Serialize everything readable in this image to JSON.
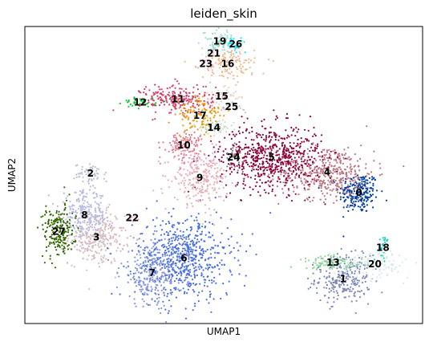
{
  "chart_data": {
    "type": "scatter",
    "title": "leiden_skin",
    "xlabel": "UMAP1",
    "ylabel": "UMAP2",
    "xlim": [
      0,
      100
    ],
    "ylim": [
      0,
      100
    ],
    "grid": false,
    "legend": "none (cluster labels printed on data)",
    "clusters": [
      {
        "label": "0",
        "color": "#023fa5",
        "center": [
          84.0,
          44.0
        ],
        "spread": [
          2.5,
          3.5
        ],
        "n": 220
      },
      {
        "label": "1",
        "color": "#7d87b9",
        "center": [
          80.0,
          15.0
        ],
        "spread": [
          3.5,
          4.0
        ],
        "n": 260
      },
      {
        "label": "2",
        "color": "#bec1d4",
        "center": [
          16.5,
          50.5
        ],
        "spread": [
          2.0,
          1.6
        ],
        "n": 60
      },
      {
        "label": "3",
        "color": "#d6bcc0",
        "center": [
          18.0,
          29.0
        ],
        "spread": [
          3.5,
          4.5
        ],
        "n": 300
      },
      {
        "label": "4",
        "color": "#bb7784",
        "center": [
          76.0,
          51.0
        ],
        "spread": [
          6.0,
          4.5
        ],
        "n": 420
      },
      {
        "label": "5",
        "color": "#8e063b",
        "center": [
          62.0,
          56.0
        ],
        "spread": [
          6.5,
          5.5
        ],
        "n": 650
      },
      {
        "label": "6",
        "color": "#4a6fe3",
        "center": [
          40.0,
          22.0
        ],
        "spread": [
          6.0,
          7.0
        ],
        "n": 650
      },
      {
        "label": "7",
        "color": "#8595e1",
        "center": [
          32.0,
          17.0
        ],
        "spread": [
          4.0,
          5.5
        ],
        "n": 260
      },
      {
        "label": "8",
        "color": "#b5bbe3",
        "center": [
          15.0,
          36.5
        ],
        "spread": [
          3.0,
          4.0
        ],
        "n": 240
      },
      {
        "label": "9",
        "color": "#e6afb9",
        "center": [
          44.0,
          49.0
        ],
        "spread": [
          3.5,
          4.5
        ],
        "n": 260
      },
      {
        "label": "10",
        "color": "#e07b91",
        "center": [
          40.0,
          60.0
        ],
        "spread": [
          2.5,
          2.5
        ],
        "n": 120
      },
      {
        "label": "11",
        "color": "#d33f6a",
        "center": [
          38.5,
          75.5
        ],
        "spread": [
          4.5,
          2.5
        ],
        "n": 230
      },
      {
        "label": "12",
        "color": "#11c638",
        "center": [
          29.0,
          74.5
        ],
        "spread": [
          2.0,
          0.8
        ],
        "n": 40
      },
      {
        "label": "13",
        "color": "#8dd593",
        "center": [
          77.5,
          20.5
        ],
        "spread": [
          4.0,
          1.2
        ],
        "n": 90
      },
      {
        "label": "14",
        "color": "#c6dec7",
        "center": [
          47.5,
          66.0
        ],
        "spread": [
          2.5,
          1.2
        ],
        "n": 60
      },
      {
        "label": "15",
        "color": "#ead3c6",
        "center": [
          49.5,
          76.5
        ],
        "spread": [
          2.5,
          1.5
        ],
        "n": 40
      },
      {
        "label": "16",
        "color": "#f0b98d",
        "center": [
          51.0,
          87.5
        ],
        "spread": [
          3.5,
          2.5
        ],
        "n": 140
      },
      {
        "label": "17",
        "color": "#ef9708",
        "center": [
          44.0,
          70.0
        ],
        "spread": [
          3.0,
          3.5
        ],
        "n": 110
      },
      {
        "label": "18",
        "color": "#0fcfc0",
        "center": [
          90.0,
          25.5
        ],
        "spread": [
          0.8,
          2.0
        ],
        "n": 25
      },
      {
        "label": "19",
        "color": "#9cded6",
        "center": [
          49.0,
          95.0
        ],
        "spread": [
          2.0,
          2.0
        ],
        "n": 80
      },
      {
        "label": "20",
        "color": "#d5eae7",
        "center": [
          88.0,
          20.0
        ],
        "spread": [
          4.5,
          2.2
        ],
        "n": 120
      },
      {
        "label": "21",
        "color": "#f3e1eb",
        "center": [
          47.5,
          91.0
        ],
        "spread": [
          1.2,
          1.0
        ],
        "n": 15
      },
      {
        "label": "22",
        "color": "#f6c4e1",
        "center": [
          27.0,
          35.5
        ],
        "spread": [
          0.8,
          0.6
        ],
        "n": 8
      },
      {
        "label": "23",
        "color": "#f79cd4",
        "center": [
          45.5,
          87.5
        ],
        "spread": [
          1.0,
          0.8
        ],
        "n": 12
      },
      {
        "label": "24",
        "color": "#7f7f7f",
        "center": [
          52.5,
          56.0
        ],
        "spread": [
          1.2,
          1.8
        ],
        "n": 30
      },
      {
        "label": "25",
        "color": "#c7c7c7",
        "center": [
          52.0,
          73.0
        ],
        "spread": [
          1.8,
          1.0
        ],
        "n": 20
      },
      {
        "label": "26",
        "color": "#1ce6ff",
        "center": [
          53.0,
          94.0
        ],
        "spread": [
          1.2,
          1.0
        ],
        "n": 30
      },
      {
        "label": "27",
        "color": "#336600",
        "center": [
          8.5,
          31.0
        ],
        "spread": [
          2.0,
          4.5
        ],
        "n": 200
      }
    ]
  }
}
